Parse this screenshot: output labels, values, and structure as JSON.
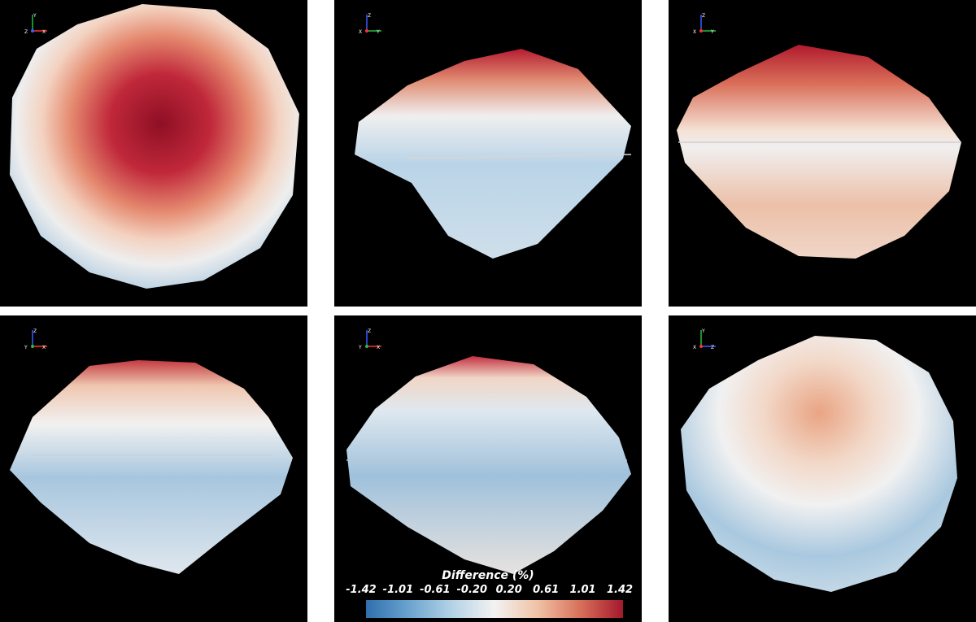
{
  "panels": [
    {
      "id": "view-1",
      "axes": {
        "up": "Y",
        "left": "Z",
        "right": "X"
      },
      "colors": {
        "up": "#22c03a",
        "left": "#3a5bff",
        "right": "#ff3030"
      }
    },
    {
      "id": "view-2",
      "axes": {
        "up": "Z",
        "left": "X",
        "right": "Y"
      },
      "colors": {
        "up": "#3a5bff",
        "left": "#ff3030",
        "right": "#22c03a"
      }
    },
    {
      "id": "view-3",
      "axes": {
        "up": "Z",
        "left": "X",
        "right": "Y"
      },
      "colors": {
        "up": "#3a5bff",
        "left": "#ff3030",
        "right": "#22c03a"
      }
    },
    {
      "id": "view-4",
      "axes": {
        "up": "Z",
        "left": "Y",
        "right": "X"
      },
      "colors": {
        "up": "#3a5bff",
        "left": "#22c03a",
        "right": "#ff3030"
      }
    },
    {
      "id": "view-5",
      "axes": {
        "up": "Z",
        "left": "Y",
        "right": "X"
      },
      "colors": {
        "up": "#3a5bff",
        "left": "#22c03a",
        "right": "#ff3030"
      }
    },
    {
      "id": "view-6",
      "axes": {
        "up": "Y",
        "left": "X",
        "right": "Z"
      },
      "colors": {
        "up": "#22c03a",
        "left": "#ff3030",
        "right": "#3a5bff"
      }
    }
  ],
  "colorbar": {
    "title": "Difference (%)",
    "ticks": [
      "-1.42",
      "-1.01",
      "-0.61",
      "-0.20",
      "0.20",
      "0.61",
      "1.01",
      "1.42"
    ],
    "min": -1.42,
    "max": 1.42,
    "colors": {
      "low": "#2f6fad",
      "mid": "#f2f2f2",
      "high": "#a3182c"
    }
  }
}
